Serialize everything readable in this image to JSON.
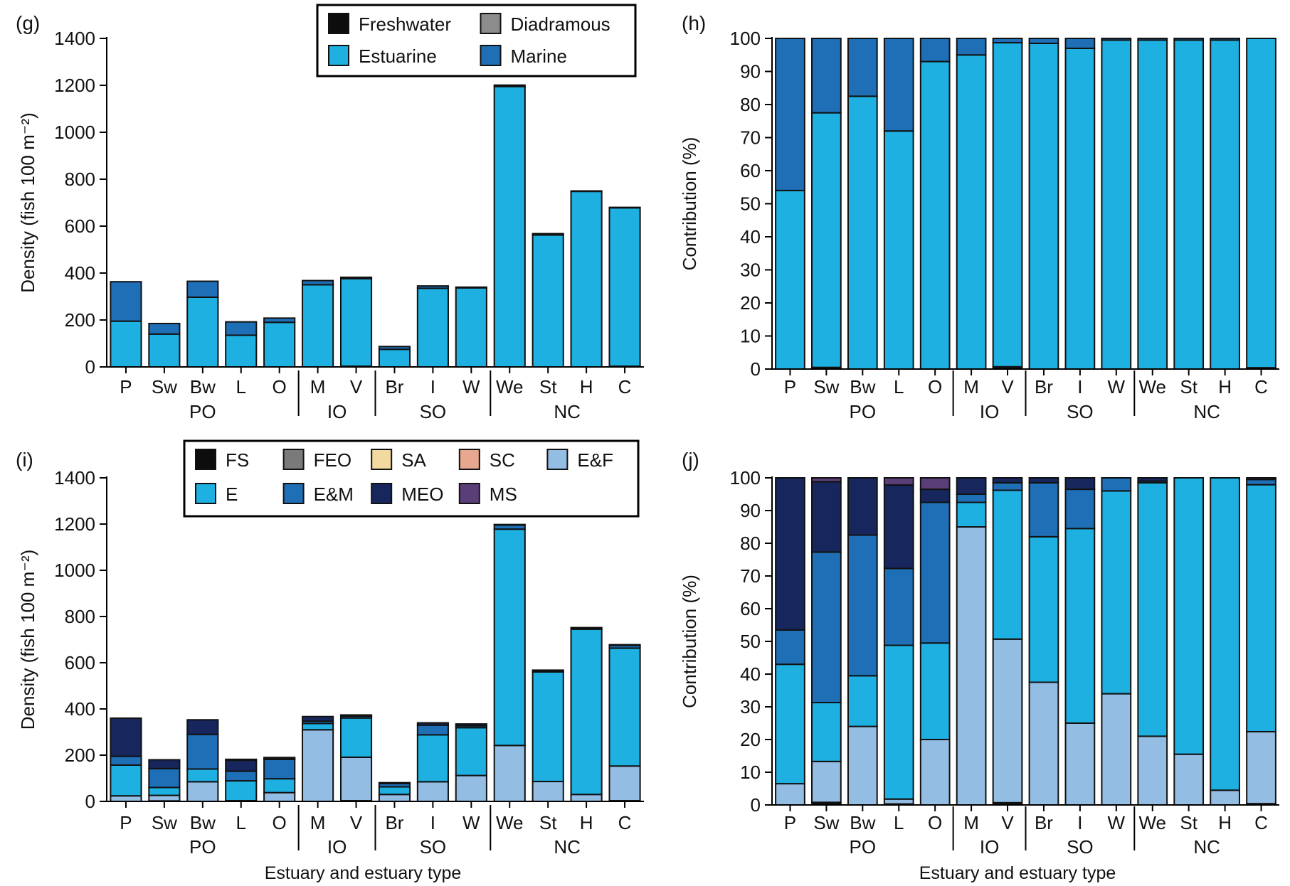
{
  "figure": {
    "colors": {
      "FS": "#0d0d0d",
      "FEO": "#7a7a7a",
      "SA": "#f2d9a0",
      "SC": "#e8a890",
      "EF": "#94bde3",
      "E": "#1fb0e2",
      "EM": "#1f6fb6",
      "MEO": "#17275e",
      "MS": "#5a3e77",
      "Freshwater": "#0d0d0d",
      "Diadramous": "#8c8c8c",
      "Estuarine": "#1fb0e2",
      "Marine": "#1f6fb6"
    },
    "x_axis_title_left": "Estuary and estuary type",
    "x_axis_title_right": "Estuary and estuary type"
  },
  "chart_data": [
    {
      "id": "g",
      "panel_label": "(g)",
      "type": "bar",
      "stacked": true,
      "ylabel": "Density (fish 100 m⁻²)",
      "ylim": [
        0,
        1400
      ],
      "yticks": [
        "0",
        "200",
        "400",
        "600",
        "800",
        "1000",
        "1200",
        "1400"
      ],
      "categories": [
        "P",
        "Sw",
        "Bw",
        "L",
        "O",
        "M",
        "V",
        "Br",
        "I",
        "W",
        "We",
        "St",
        "H",
        "C"
      ],
      "groups": [
        {
          "label": "PO",
          "from": 0,
          "to": 4
        },
        {
          "label": "IO",
          "from": 5,
          "to": 6
        },
        {
          "label": "SO",
          "from": 7,
          "to": 9
        },
        {
          "label": "NC",
          "from": 10,
          "to": 13
        }
      ],
      "legend": {
        "position": "top-center",
        "columns": 2
      },
      "series": [
        {
          "name": "Freshwater",
          "key": "Freshwater",
          "values": [
            0,
            0,
            0,
            0,
            0,
            0,
            3,
            0,
            0,
            0,
            0,
            0,
            0,
            3
          ]
        },
        {
          "name": "Diadramous",
          "key": "Diadramous",
          "values": [
            0,
            0,
            0,
            0,
            0,
            0,
            0,
            0,
            0,
            0,
            0,
            0,
            0,
            0
          ]
        },
        {
          "name": "Estuarine",
          "key": "Estuarine",
          "values": [
            195,
            140,
            297,
            135,
            190,
            350,
            373,
            75,
            335,
            337,
            1195,
            562,
            748,
            675
          ]
        },
        {
          "name": "Marine",
          "key": "Marine",
          "values": [
            168,
            45,
            68,
            57,
            18,
            18,
            6,
            12,
            10,
            3,
            6,
            6,
            2,
            2
          ]
        }
      ]
    },
    {
      "id": "h",
      "panel_label": "(h)",
      "type": "bar",
      "stacked": true,
      "ylabel": "Contribution (%)",
      "ylim": [
        0,
        100
      ],
      "yticks": [
        "0",
        "10",
        "20",
        "30",
        "40",
        "50",
        "60",
        "70",
        "80",
        "90",
        "100"
      ],
      "categories": [
        "P",
        "Sw",
        "Bw",
        "L",
        "O",
        "M",
        "V",
        "Br",
        "I",
        "W",
        "We",
        "St",
        "H",
        "C"
      ],
      "groups": [
        {
          "label": "PO",
          "from": 0,
          "to": 4
        },
        {
          "label": "IO",
          "from": 5,
          "to": 6
        },
        {
          "label": "SO",
          "from": 7,
          "to": 9
        },
        {
          "label": "NC",
          "from": 10,
          "to": 13
        }
      ],
      "series": [
        {
          "name": "Freshwater",
          "key": "Freshwater",
          "values": [
            0,
            0.5,
            0,
            0,
            0,
            0,
            0.7,
            0,
            0,
            0,
            0,
            0,
            0,
            0.4
          ]
        },
        {
          "name": "Diadramous",
          "key": "Diadramous",
          "values": [
            0,
            0,
            0,
            0,
            0,
            0,
            0,
            0,
            0,
            0,
            0,
            0,
            0,
            0
          ]
        },
        {
          "name": "Estuarine",
          "key": "Estuarine",
          "values": [
            54,
            77,
            82.5,
            72,
            93,
            95,
            98,
            98.5,
            97,
            99.5,
            99.5,
            99.5,
            99.5,
            99.6
          ]
        },
        {
          "name": "Marine",
          "key": "Marine",
          "values": [
            46,
            22.5,
            17.5,
            28,
            7,
            5,
            1.3,
            1.5,
            3,
            0.5,
            0.5,
            0.5,
            0.5,
            0
          ]
        }
      ]
    },
    {
      "id": "i",
      "panel_label": "(i)",
      "type": "bar",
      "stacked": true,
      "ylabel": "Density (fish 100 m⁻²)",
      "ylim": [
        0,
        1400
      ],
      "yticks": [
        "0",
        "200",
        "400",
        "600",
        "800",
        "1000",
        "1200",
        "1400"
      ],
      "categories": [
        "P",
        "Sw",
        "Bw",
        "L",
        "O",
        "M",
        "V",
        "Br",
        "I",
        "W",
        "We",
        "St",
        "H",
        "C"
      ],
      "groups": [
        {
          "label": "PO",
          "from": 0,
          "to": 4
        },
        {
          "label": "IO",
          "from": 5,
          "to": 6
        },
        {
          "label": "SO",
          "from": 7,
          "to": 9
        },
        {
          "label": "NC",
          "from": 10,
          "to": 13
        }
      ],
      "legend": {
        "position": "top-center",
        "columns": 5
      },
      "series": [
        {
          "name": "FS",
          "key": "FS",
          "values": [
            0,
            2,
            0,
            0,
            0,
            0,
            3,
            0,
            0,
            0,
            0,
            0,
            0,
            3
          ]
        },
        {
          "name": "FEO",
          "key": "FEO",
          "values": [
            0,
            0,
            0,
            0,
            0,
            0,
            0,
            0,
            0,
            0,
            0,
            0,
            0,
            0
          ]
        },
        {
          "name": "SA",
          "key": "SA",
          "values": [
            0,
            0,
            0,
            0,
            0,
            0,
            0,
            0,
            0,
            0,
            0,
            0,
            0,
            0
          ]
        },
        {
          "name": "SC",
          "key": "SC",
          "values": [
            0,
            0,
            0,
            0,
            0,
            0,
            0,
            0,
            0,
            0,
            0,
            0,
            0,
            0
          ]
        },
        {
          "name": "E&F",
          "key": "EF",
          "values": [
            24,
            24,
            85,
            3,
            38,
            310,
            188,
            30,
            85,
            112,
            242,
            86,
            30,
            150
          ]
        },
        {
          "name": "E",
          "key": "E",
          "values": [
            133,
            34,
            55,
            86,
            60,
            27,
            170,
            33,
            203,
            207,
            936,
            474,
            715,
            510
          ]
        },
        {
          "name": "E&M",
          "key": "EM",
          "values": [
            38,
            82,
            150,
            42,
            84,
            10,
            8,
            14,
            42,
            8,
            18,
            4,
            4,
            12
          ]
        },
        {
          "name": "MEO",
          "key": "MEO",
          "values": [
            165,
            38,
            63,
            47,
            4,
            20,
            5,
            4,
            10,
            8,
            2,
            4,
            3,
            3
          ]
        },
        {
          "name": "MS",
          "key": "MS",
          "values": [
            0,
            0,
            0,
            4,
            4,
            0,
            0,
            0,
            0,
            0,
            0,
            0,
            0,
            0
          ]
        }
      ]
    },
    {
      "id": "j",
      "panel_label": "(j)",
      "type": "bar",
      "stacked": true,
      "ylabel": "Contribution (%)",
      "ylim": [
        0,
        100
      ],
      "yticks": [
        "0",
        "10",
        "20",
        "30",
        "40",
        "50",
        "60",
        "70",
        "80",
        "90",
        "100"
      ],
      "categories": [
        "P",
        "Sw",
        "Bw",
        "L",
        "O",
        "M",
        "V",
        "Br",
        "I",
        "W",
        "We",
        "St",
        "H",
        "C"
      ],
      "groups": [
        {
          "label": "PO",
          "from": 0,
          "to": 4
        },
        {
          "label": "IO",
          "from": 5,
          "to": 6
        },
        {
          "label": "SO",
          "from": 7,
          "to": 9
        },
        {
          "label": "NC",
          "from": 10,
          "to": 13
        }
      ],
      "series": [
        {
          "name": "FS",
          "key": "FS",
          "values": [
            0,
            0.8,
            0,
            0,
            0,
            0,
            0.7,
            0,
            0,
            0,
            0,
            0,
            0,
            0.4
          ]
        },
        {
          "name": "FEO",
          "key": "FEO",
          "values": [
            0,
            0,
            0,
            0.3,
            0,
            0,
            0,
            0,
            0,
            0,
            0,
            0,
            0,
            0
          ]
        },
        {
          "name": "SA",
          "key": "SA",
          "values": [
            0,
            0,
            0,
            0,
            0,
            0,
            0,
            0,
            0,
            0,
            0,
            0,
            0,
            0
          ]
        },
        {
          "name": "SC",
          "key": "SC",
          "values": [
            0,
            0,
            0,
            0,
            0,
            0,
            0,
            0,
            0,
            0,
            0,
            0,
            0,
            0
          ]
        },
        {
          "name": "E&F",
          "key": "EF",
          "values": [
            6.5,
            12.5,
            24,
            1.5,
            20,
            85,
            50,
            37.5,
            25,
            34,
            21,
            15.5,
            4.5,
            22
          ]
        },
        {
          "name": "E",
          "key": "E",
          "values": [
            36.5,
            18,
            15.5,
            47,
            29.5,
            7.5,
            45.5,
            44.5,
            59.5,
            62,
            77.5,
            84.5,
            95.5,
            75.5
          ]
        },
        {
          "name": "E&M",
          "key": "EM",
          "values": [
            10.5,
            46,
            43,
            23.5,
            43,
            2.5,
            2.3,
            16.5,
            12,
            4,
            0.5,
            0,
            0,
            1.6
          ]
        },
        {
          "name": "MEO",
          "key": "MEO",
          "values": [
            46.5,
            21.5,
            17.5,
            25.5,
            4,
            5,
            1.5,
            1.5,
            3.5,
            0,
            1,
            0,
            0,
            0.5
          ]
        },
        {
          "name": "MS",
          "key": "MS",
          "values": [
            0,
            1.2,
            0,
            2.2,
            3.5,
            0,
            0,
            0,
            0,
            0,
            0,
            0,
            0,
            0
          ]
        }
      ]
    }
  ]
}
